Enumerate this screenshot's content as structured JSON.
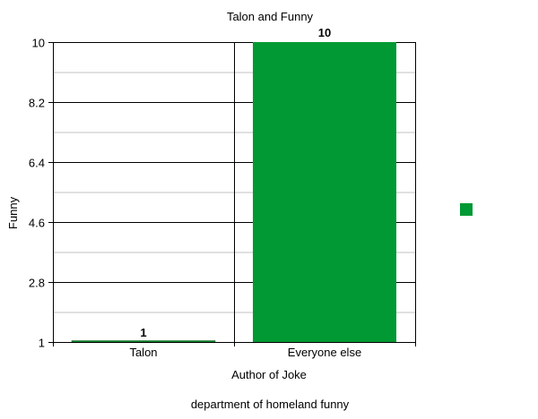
{
  "chart_data": {
    "type": "bar",
    "title": "Talon and Funny",
    "xlabel": "Author of Joke",
    "ylabel": "Funny",
    "footer": "department of homeland funny",
    "categories": [
      "Talon",
      "Everyone else"
    ],
    "values": [
      1,
      10
    ],
    "data_labels": [
      "1",
      "10"
    ],
    "ylim": [
      1,
      10
    ],
    "yticks": [
      "1",
      "2.8",
      "4.6",
      "6.4",
      "8.2",
      "10"
    ],
    "grid": true,
    "legend": {
      "placement": "right",
      "entries": [
        ""
      ]
    },
    "colors": {
      "bar": "#009933",
      "grid_major": "#000000",
      "grid_minor": "#c0c0c0"
    }
  }
}
